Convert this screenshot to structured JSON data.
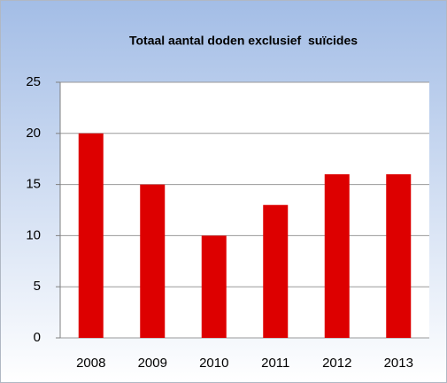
{
  "chart_data": {
    "type": "bar",
    "title": "Totaal aantal doden exclusief  suïcides",
    "categories": [
      "2008",
      "2009",
      "2010",
      "2011",
      "2012",
      "2013"
    ],
    "values": [
      20,
      15,
      10,
      13,
      16,
      16
    ],
    "color": "#dd0000",
    "ylim": [
      0,
      25
    ],
    "yticks": [
      0,
      5,
      10,
      15,
      20,
      25
    ],
    "grid": true
  }
}
